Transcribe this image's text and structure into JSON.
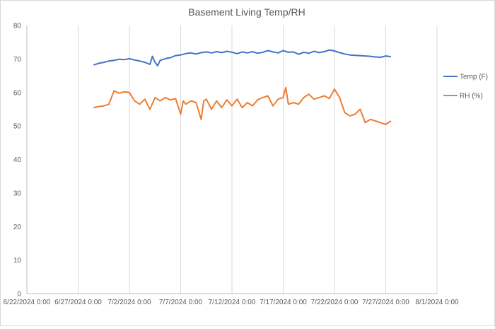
{
  "chart_data": {
    "type": "line",
    "title": "Basement Living Temp/RH",
    "xlabel": "",
    "ylabel": "",
    "ylim": [
      0,
      80
    ],
    "yticks": [
      0,
      10,
      20,
      30,
      40,
      50,
      60,
      70,
      80
    ],
    "xlim": [
      "2024-06-22",
      "2024-08-01"
    ],
    "xticks": [
      {
        "date": "2024-06-22",
        "label": "6/22/2024 0:00"
      },
      {
        "date": "2024-06-27",
        "label": "6/27/2024 0:00"
      },
      {
        "date": "2024-07-02",
        "label": "7/2/2024 0:00"
      },
      {
        "date": "2024-07-07",
        "label": "7/7/2024 0:00"
      },
      {
        "date": "2024-07-12",
        "label": "7/12/2024 0:00"
      },
      {
        "date": "2024-07-17",
        "label": "7/17/2024 0:00"
      },
      {
        "date": "2024-07-22",
        "label": "7/22/2024 0:00"
      },
      {
        "date": "2024-07-27",
        "label": "7/27/2024 0:00"
      },
      {
        "date": "2024-08-01",
        "label": "8/1/2024 0:00"
      }
    ],
    "grid": "vertical",
    "legend": "right",
    "series": [
      {
        "name": "Temp (F)",
        "color": "#4472c4",
        "points": [
          [
            "2024-06-28 12:00",
            68.2
          ],
          [
            "2024-06-29 00:00",
            68.7
          ],
          [
            "2024-06-29 12:00",
            69.0
          ],
          [
            "2024-06-30 00:00",
            69.4
          ],
          [
            "2024-06-30 12:00",
            69.6
          ],
          [
            "2024-07-01 00:00",
            69.9
          ],
          [
            "2024-07-01 12:00",
            69.8
          ],
          [
            "2024-07-02 00:00",
            70.1
          ],
          [
            "2024-07-02 12:00",
            69.7
          ],
          [
            "2024-07-03 00:00",
            69.4
          ],
          [
            "2024-07-03 12:00",
            69.0
          ],
          [
            "2024-07-04 00:00",
            68.4
          ],
          [
            "2024-07-04 06:00",
            70.8
          ],
          [
            "2024-07-04 12:00",
            69.0
          ],
          [
            "2024-07-04 18:00",
            68.0
          ],
          [
            "2024-07-05 00:00",
            69.6
          ],
          [
            "2024-07-05 12:00",
            70.1
          ],
          [
            "2024-07-06 00:00",
            70.4
          ],
          [
            "2024-07-06 12:00",
            71.0
          ],
          [
            "2024-07-07 00:00",
            71.2
          ],
          [
            "2024-07-07 12:00",
            71.6
          ],
          [
            "2024-07-08 00:00",
            71.8
          ],
          [
            "2024-07-08 12:00",
            71.5
          ],
          [
            "2024-07-09 00:00",
            71.9
          ],
          [
            "2024-07-09 12:00",
            72.1
          ],
          [
            "2024-07-10 00:00",
            71.8
          ],
          [
            "2024-07-10 12:00",
            72.2
          ],
          [
            "2024-07-11 00:00",
            71.9
          ],
          [
            "2024-07-11 12:00",
            72.3
          ],
          [
            "2024-07-12 00:00",
            72.0
          ],
          [
            "2024-07-12 12:00",
            71.6
          ],
          [
            "2024-07-13 00:00",
            72.1
          ],
          [
            "2024-07-13 12:00",
            71.8
          ],
          [
            "2024-07-14 00:00",
            72.2
          ],
          [
            "2024-07-14 12:00",
            71.7
          ],
          [
            "2024-07-15 00:00",
            72.0
          ],
          [
            "2024-07-15 12:00",
            72.5
          ],
          [
            "2024-07-16 00:00",
            72.1
          ],
          [
            "2024-07-16 12:00",
            71.8
          ],
          [
            "2024-07-17 00:00",
            72.5
          ],
          [
            "2024-07-17 12:00",
            72.0
          ],
          [
            "2024-07-18 00:00",
            72.1
          ],
          [
            "2024-07-18 12:00",
            71.4
          ],
          [
            "2024-07-19 00:00",
            72.0
          ],
          [
            "2024-07-19 12:00",
            71.7
          ],
          [
            "2024-07-20 00:00",
            72.3
          ],
          [
            "2024-07-20 12:00",
            71.9
          ],
          [
            "2024-07-21 00:00",
            72.2
          ],
          [
            "2024-07-21 12:00",
            72.7
          ],
          [
            "2024-07-22 00:00",
            72.4
          ],
          [
            "2024-07-22 12:00",
            71.9
          ],
          [
            "2024-07-23 00:00",
            71.5
          ],
          [
            "2024-07-23 12:00",
            71.2
          ],
          [
            "2024-07-24 00:00",
            71.1
          ],
          [
            "2024-07-24 12:00",
            71.0
          ],
          [
            "2024-07-25 00:00",
            70.9
          ],
          [
            "2024-07-25 12:00",
            70.8
          ],
          [
            "2024-07-26 00:00",
            70.6
          ],
          [
            "2024-07-26 12:00",
            70.5
          ],
          [
            "2024-07-27 00:00",
            70.9
          ],
          [
            "2024-07-27 12:00",
            70.7
          ]
        ]
      },
      {
        "name": "RH (%)",
        "color": "#ed7d31",
        "points": [
          [
            "2024-06-28 12:00",
            55.5
          ],
          [
            "2024-06-29 00:00",
            55.8
          ],
          [
            "2024-06-29 12:00",
            56.0
          ],
          [
            "2024-06-30 00:00",
            56.5
          ],
          [
            "2024-06-30 06:00",
            58.5
          ],
          [
            "2024-06-30 12:00",
            60.5
          ],
          [
            "2024-07-01 00:00",
            59.8
          ],
          [
            "2024-07-01 12:00",
            60.2
          ],
          [
            "2024-07-02 00:00",
            60.0
          ],
          [
            "2024-07-02 12:00",
            57.5
          ],
          [
            "2024-07-03 00:00",
            56.5
          ],
          [
            "2024-07-03 12:00",
            58.0
          ],
          [
            "2024-07-04 00:00",
            55.0
          ],
          [
            "2024-07-04 12:00",
            58.5
          ],
          [
            "2024-07-05 00:00",
            57.5
          ],
          [
            "2024-07-05 12:00",
            58.5
          ],
          [
            "2024-07-06 00:00",
            57.8
          ],
          [
            "2024-07-06 12:00",
            58.2
          ],
          [
            "2024-07-07 00:00",
            53.5
          ],
          [
            "2024-07-07 06:00",
            57.5
          ],
          [
            "2024-07-07 12:00",
            56.5
          ],
          [
            "2024-07-08 00:00",
            57.5
          ],
          [
            "2024-07-08 12:00",
            57.0
          ],
          [
            "2024-07-09 00:00",
            52.0
          ],
          [
            "2024-07-09 06:00",
            57.5
          ],
          [
            "2024-07-09 12:00",
            58.0
          ],
          [
            "2024-07-10 00:00",
            55.0
          ],
          [
            "2024-07-10 12:00",
            57.5
          ],
          [
            "2024-07-11 00:00",
            55.5
          ],
          [
            "2024-07-11 12:00",
            57.8
          ],
          [
            "2024-07-12 00:00",
            56.0
          ],
          [
            "2024-07-12 12:00",
            58.0
          ],
          [
            "2024-07-13 00:00",
            55.5
          ],
          [
            "2024-07-13 12:00",
            57.0
          ],
          [
            "2024-07-14 00:00",
            56.0
          ],
          [
            "2024-07-14 12:00",
            57.8
          ],
          [
            "2024-07-15 00:00",
            58.5
          ],
          [
            "2024-07-15 12:00",
            59.0
          ],
          [
            "2024-07-16 00:00",
            56.0
          ],
          [
            "2024-07-16 12:00",
            58.0
          ],
          [
            "2024-07-17 00:00",
            58.5
          ],
          [
            "2024-07-17 06:00",
            61.5
          ],
          [
            "2024-07-17 12:00",
            56.5
          ],
          [
            "2024-07-18 00:00",
            57.0
          ],
          [
            "2024-07-18 12:00",
            56.5
          ],
          [
            "2024-07-19 00:00",
            58.5
          ],
          [
            "2024-07-19 12:00",
            59.5
          ],
          [
            "2024-07-20 00:00",
            58.0
          ],
          [
            "2024-07-20 12:00",
            58.5
          ],
          [
            "2024-07-21 00:00",
            59.0
          ],
          [
            "2024-07-21 12:00",
            58.2
          ],
          [
            "2024-07-22 00:00",
            61.0
          ],
          [
            "2024-07-22 12:00",
            58.5
          ],
          [
            "2024-07-23 00:00",
            54.0
          ],
          [
            "2024-07-23 12:00",
            53.0
          ],
          [
            "2024-07-24 00:00",
            53.5
          ],
          [
            "2024-07-24 12:00",
            55.0
          ],
          [
            "2024-07-25 00:00",
            51.0
          ],
          [
            "2024-07-25 12:00",
            52.0
          ],
          [
            "2024-07-26 00:00",
            51.5
          ],
          [
            "2024-07-26 12:00",
            51.0
          ],
          [
            "2024-07-27 00:00",
            50.5
          ],
          [
            "2024-07-27 12:00",
            51.5
          ]
        ]
      }
    ]
  }
}
